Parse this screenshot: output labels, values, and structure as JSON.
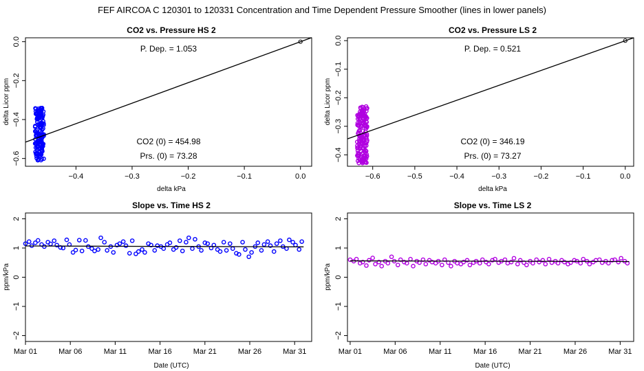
{
  "figure": {
    "title": "FEF   AIRCOA C   120301 to 120331   Concentration and Time Dependent Pressure Smoother (lines in lower panels)"
  },
  "chart_data": [
    {
      "type": "scatter",
      "title": "CO2 vs. Pressure HS 2",
      "xlabel": "delta kPa",
      "ylabel": "delta Licor ppm",
      "xlim": [
        -0.49,
        0.02
      ],
      "ylim": [
        -0.64,
        0.02
      ],
      "xticks": [
        -0.4,
        -0.3,
        -0.2,
        -0.1,
        0.0
      ],
      "xtick_labels": [
        "−0.4",
        "−0.3",
        "−0.2",
        "−0.1",
        "0.0"
      ],
      "yticks": [
        -0.6,
        -0.4,
        -0.2,
        0.0
      ],
      "ytick_labels": [
        "−0.6",
        "−0.4",
        "−0.2",
        "0.0"
      ],
      "point_color": "#0000ff",
      "point_cloud": {
        "x_center": -0.465,
        "x_spread": 0.008,
        "y_min": -0.61,
        "y_max": -0.34,
        "count": 160
      },
      "fit_line": {
        "x": [
          -0.49,
          0.02
        ],
        "y": [
          -0.516,
          0.021
        ]
      },
      "reference_point": {
        "x": 0.0,
        "y": 0.0
      },
      "annotations": {
        "p_dep": "P. Dep. =  1.053",
        "co2_0": "CO2 (0) =  454.98",
        "prs_0": "Prs. (0) =  73.28"
      }
    },
    {
      "type": "scatter",
      "title": "CO2 vs. Pressure LS 2",
      "xlabel": "delta kPa",
      "ylabel": "delta Licor ppm",
      "xlim": [
        -0.66,
        0.02
      ],
      "ylim": [
        -0.44,
        0.01
      ],
      "xticks": [
        -0.6,
        -0.5,
        -0.4,
        -0.3,
        -0.2,
        -0.1,
        0.0
      ],
      "xtick_labels": [
        "−0.6",
        "−0.5",
        "−0.4",
        "−0.3",
        "−0.2",
        "−0.1",
        "0.0"
      ],
      "yticks": [
        -0.4,
        -0.3,
        -0.2,
        -0.1,
        0.0
      ],
      "ytick_labels": [
        "−0.4",
        "−0.3",
        "−0.2",
        "−0.1",
        "0.0"
      ],
      "point_color": "#b000e0",
      "point_cloud": {
        "x_center": -0.625,
        "x_spread": 0.012,
        "y_min": -0.43,
        "y_max": -0.23,
        "count": 160
      },
      "fit_line": {
        "x": [
          -0.66,
          0.02
        ],
        "y": [
          -0.344,
          0.01
        ]
      },
      "reference_point": {
        "x": 0.0,
        "y": 0.0
      },
      "annotations": {
        "p_dep": "P. Dep. =  0.521",
        "co2_0": "CO2 (0) =  346.19",
        "prs_0": "Prs. (0) =  73.27"
      }
    },
    {
      "type": "scatter",
      "title": "Slope vs. Time HS 2",
      "xlabel": "Date (UTC)",
      "ylabel": "ppm/kPa",
      "xlim": [
        0,
        31.9
      ],
      "ylim": [
        -2.2,
        2.2
      ],
      "xticks": [
        0,
        5,
        10,
        15,
        20,
        25,
        30
      ],
      "xtick_labels": [
        "Mar 01",
        "Mar 06",
        "Mar 11",
        "Mar 16",
        "Mar 21",
        "Mar 26",
        "Mar 31"
      ],
      "yticks": [
        -2,
        -1,
        0,
        1,
        2
      ],
      "ytick_labels": [
        "−2",
        "−1",
        "0",
        "1",
        "2"
      ],
      "point_color": "#0000ff",
      "x": [
        0.0,
        0.4,
        0.7,
        1.1,
        1.4,
        1.8,
        2.1,
        2.5,
        2.8,
        3.2,
        3.5,
        3.9,
        4.2,
        4.6,
        4.9,
        5.3,
        5.6,
        6.0,
        6.3,
        6.7,
        7.0,
        7.4,
        7.7,
        8.1,
        8.4,
        8.8,
        9.1,
        9.5,
        9.8,
        10.2,
        10.5,
        10.9,
        11.2,
        11.6,
        11.9,
        12.3,
        12.6,
        13.0,
        13.3,
        13.7,
        14.0,
        14.4,
        14.7,
        15.1,
        15.4,
        15.8,
        16.1,
        16.5,
        16.8,
        17.2,
        17.5,
        17.9,
        18.2,
        18.6,
        18.9,
        19.3,
        19.6,
        20.0,
        20.3,
        20.7,
        21.0,
        21.4,
        21.7,
        22.1,
        22.4,
        22.8,
        23.1,
        23.5,
        23.8,
        24.2,
        24.5,
        24.9,
        25.2,
        25.6,
        25.9,
        26.3,
        26.6,
        27.0,
        27.3,
        27.7,
        28.0,
        28.4,
        28.7,
        29.1,
        29.4,
        29.8,
        30.1,
        30.5,
        30.8
      ],
      "y": [
        1.15,
        1.22,
        1.08,
        1.18,
        1.26,
        1.12,
        1.05,
        1.2,
        1.14,
        1.25,
        1.1,
        1.02,
        1.0,
        1.28,
        1.12,
        0.85,
        0.93,
        1.27,
        0.9,
        1.26,
        1.05,
        0.98,
        0.9,
        0.95,
        1.35,
        1.2,
        0.92,
        1.05,
        0.85,
        1.1,
        1.15,
        1.22,
        1.08,
        0.82,
        1.25,
        0.8,
        0.88,
        0.95,
        0.85,
        1.15,
        1.1,
        0.92,
        1.08,
        1.05,
        0.98,
        1.12,
        1.18,
        0.95,
        1.02,
        1.25,
        0.9,
        1.2,
        1.35,
        0.98,
        1.3,
        1.05,
        0.92,
        1.18,
        1.15,
        1.0,
        1.1,
        0.95,
        0.88,
        1.2,
        0.92,
        1.15,
        0.98,
        0.82,
        0.78,
        1.2,
        0.95,
        0.7,
        0.85,
        1.05,
        1.18,
        0.92,
        1.12,
        1.22,
        1.08,
        0.88,
        1.15,
        1.25,
        1.05,
        0.98,
        1.28,
        1.2,
        1.1,
        0.95,
        1.22
      ],
      "smoother": {
        "x": [
          0,
          31
        ],
        "y": [
          1.07,
          1.04
        ]
      }
    },
    {
      "type": "scatter",
      "title": "Slope vs. Time LS 2",
      "xlabel": "Date (UTC)",
      "ylabel": "ppm/kPa",
      "xlim": [
        -0.3,
        31.5
      ],
      "ylim": [
        -2.2,
        2.2
      ],
      "xticks": [
        0,
        5,
        10,
        15,
        20,
        25,
        30
      ],
      "xtick_labels": [
        "Mar 01",
        "Mar 06",
        "Mar 11",
        "Mar 16",
        "Mar 21",
        "Mar 26",
        "Mar 31"
      ],
      "yticks": [
        -2,
        -1,
        0,
        1,
        2
      ],
      "ytick_labels": [
        "−2",
        "−1",
        "0",
        "1",
        "2"
      ],
      "point_color": "#b000e0",
      "x": [
        0.0,
        0.4,
        0.7,
        1.1,
        1.4,
        1.8,
        2.1,
        2.5,
        2.8,
        3.2,
        3.5,
        3.9,
        4.2,
        4.6,
        4.9,
        5.3,
        5.6,
        6.0,
        6.3,
        6.7,
        7.0,
        7.4,
        7.7,
        8.1,
        8.4,
        8.8,
        9.1,
        9.5,
        9.8,
        10.2,
        10.5,
        10.9,
        11.2,
        11.6,
        11.9,
        12.3,
        12.6,
        13.0,
        13.3,
        13.7,
        14.0,
        14.4,
        14.7,
        15.1,
        15.4,
        15.8,
        16.1,
        16.5,
        16.8,
        17.2,
        17.5,
        17.9,
        18.2,
        18.6,
        18.9,
        19.3,
        19.6,
        20.0,
        20.3,
        20.7,
        21.0,
        21.4,
        21.7,
        22.1,
        22.4,
        22.8,
        23.1,
        23.5,
        23.8,
        24.2,
        24.5,
        24.9,
        25.2,
        25.6,
        25.9,
        26.3,
        26.6,
        27.0,
        27.3,
        27.7,
        28.0,
        28.4,
        28.7,
        29.1,
        29.4,
        29.8,
        30.1,
        30.5,
        30.8
      ],
      "y": [
        0.6,
        0.55,
        0.62,
        0.48,
        0.52,
        0.4,
        0.58,
        0.66,
        0.45,
        0.52,
        0.38,
        0.55,
        0.48,
        0.7,
        0.55,
        0.42,
        0.6,
        0.52,
        0.48,
        0.62,
        0.38,
        0.55,
        0.5,
        0.6,
        0.45,
        0.58,
        0.52,
        0.48,
        0.55,
        0.42,
        0.6,
        0.5,
        0.38,
        0.55,
        0.48,
        0.45,
        0.52,
        0.58,
        0.42,
        0.5,
        0.55,
        0.48,
        0.6,
        0.52,
        0.45,
        0.58,
        0.62,
        0.5,
        0.55,
        0.6,
        0.48,
        0.52,
        0.65,
        0.45,
        0.58,
        0.5,
        0.42,
        0.55,
        0.48,
        0.6,
        0.52,
        0.58,
        0.45,
        0.62,
        0.5,
        0.55,
        0.48,
        0.58,
        0.52,
        0.45,
        0.5,
        0.58,
        0.55,
        0.48,
        0.62,
        0.55,
        0.45,
        0.52,
        0.58,
        0.6,
        0.5,
        0.55,
        0.48,
        0.58,
        0.6,
        0.52,
        0.65,
        0.55,
        0.48
      ],
      "smoother": {
        "x": [
          0,
          31
        ],
        "y": [
          0.56,
          0.54
        ]
      }
    }
  ]
}
